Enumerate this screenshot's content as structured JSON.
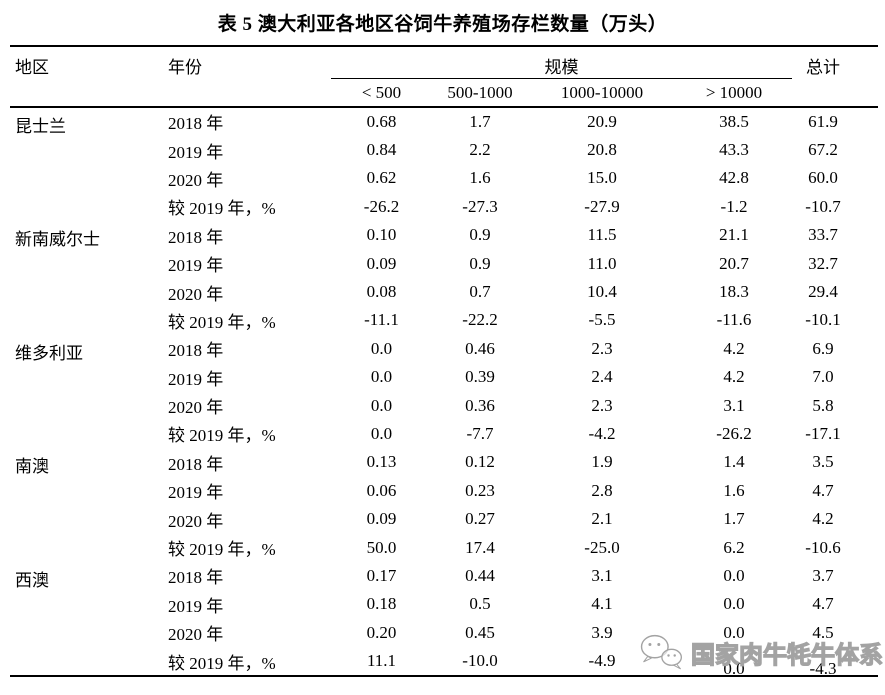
{
  "title": "表 5 澳大利亚各地区谷饲牛养殖场存栏数量（万头）",
  "table": {
    "col_headers": {
      "region": "地区",
      "year": "年份",
      "scale_group": "规模",
      "total": "总计",
      "scale_cols": [
        "< 500",
        "500-1000",
        "1000-10000",
        "> 10000"
      ]
    },
    "rows": [
      [
        "昆士兰",
        "2018 年",
        "0.68",
        "1.7",
        "20.9",
        "38.5",
        "61.9"
      ],
      [
        "",
        "2019 年",
        "0.84",
        "2.2",
        "20.8",
        "43.3",
        "67.2"
      ],
      [
        "",
        "2020 年",
        "0.62",
        "1.6",
        "15.0",
        "42.8",
        "60.0"
      ],
      [
        "",
        "较 2019 年，%",
        "-26.2",
        "-27.3",
        "-27.9",
        "-1.2",
        "-10.7"
      ],
      [
        "新南威尔士",
        "2018 年",
        "0.10",
        "0.9",
        "11.5",
        "21.1",
        "33.7"
      ],
      [
        "",
        "2019 年",
        "0.09",
        "0.9",
        "11.0",
        "20.7",
        "32.7"
      ],
      [
        "",
        "2020 年",
        "0.08",
        "0.7",
        "10.4",
        "18.3",
        "29.4"
      ],
      [
        "",
        "较 2019 年，%",
        "-11.1",
        "-22.2",
        "-5.5",
        "-11.6",
        "-10.1"
      ],
      [
        "维多利亚",
        "2018 年",
        "0.0",
        "0.46",
        "2.3",
        "4.2",
        "6.9"
      ],
      [
        "",
        "2019 年",
        "0.0",
        "0.39",
        "2.4",
        "4.2",
        "7.0"
      ],
      [
        "",
        "2020 年",
        "0.0",
        "0.36",
        "2.3",
        "3.1",
        "5.8"
      ],
      [
        "",
        "较 2019 年，%",
        "0.0",
        "-7.7",
        "-4.2",
        "-26.2",
        "-17.1"
      ],
      [
        "南澳",
        "2018 年",
        "0.13",
        "0.12",
        "1.9",
        "1.4",
        "3.5"
      ],
      [
        "",
        "2019 年",
        "0.06",
        "0.23",
        "2.8",
        "1.6",
        "4.7"
      ],
      [
        "",
        "2020 年",
        "0.09",
        "0.27",
        "2.1",
        "1.7",
        "4.2"
      ],
      [
        "",
        "较 2019 年，%",
        "50.0",
        "17.4",
        "-25.0",
        "6.2",
        "-10.6"
      ],
      [
        "西澳",
        "2018 年",
        "0.17",
        "0.44",
        "3.1",
        "0.0",
        "3.7"
      ],
      [
        "",
        "2019 年",
        "0.18",
        "0.5",
        "4.1",
        "0.0",
        "4.7"
      ],
      [
        "",
        "2020 年",
        "0.20",
        "0.45",
        "3.9",
        "0.0",
        "4.5"
      ],
      [
        "",
        "较 2019 年，%",
        "11.1",
        "-10.0",
        "-4.9",
        "0.0",
        "-4.3"
      ]
    ]
  },
  "watermark": {
    "icon": "wechat-icon",
    "text": "国家肉牛牦牛体系",
    "color": "#a3a3a3"
  }
}
